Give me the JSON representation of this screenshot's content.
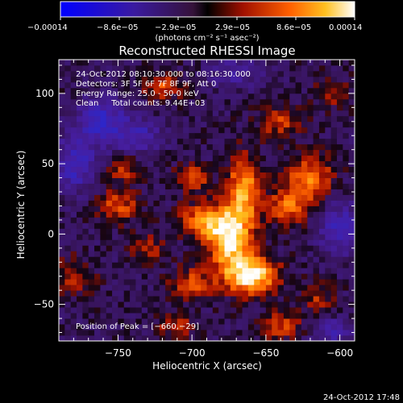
{
  "chart_data": {
    "type": "heatmap",
    "title": "Reconstructed RHESSI Image",
    "xlabel": "Heliocentric X (arcsec)",
    "ylabel": "Heliocentric Y (arcsec)",
    "xlim": [
      -790,
      -590
    ],
    "ylim": [
      -76,
      124
    ],
    "x_ticks": [
      -750,
      -700,
      -650,
      -600
    ],
    "x_tick_labels": [
      "−750",
      "−700",
      "−650",
      "−600"
    ],
    "y_ticks": [
      100,
      50,
      0,
      -50
    ],
    "y_tick_labels": [
      "100",
      "50",
      "0",
      "−50"
    ],
    "colorbar": {
      "range": [
        -0.00014,
        0.00014
      ],
      "tick_labels": [
        "−0.00014",
        "−8.6e−05",
        "−2.9e−05",
        "2.9e−05",
        "8.6e−05",
        "0.00014"
      ],
      "unit_text": "(photons cm⁻² s⁻¹ asec⁻²)"
    },
    "annotations": [
      "24-Oct-2012 08:10:30.000 to 08:16:30.000",
      "Detectors: 3F 5F 6F 7F 8F 9F, Att 0",
      "Energy Range: 25.0 - 50.0 keV",
      "Clean     Total counts: 9.44E+03"
    ],
    "peak_text": "Position of Peak = [−660,−29]",
    "peak": {
      "x": -660,
      "y": -29
    },
    "blobs": [
      {
        "x": -660,
        "y": -29,
        "amp": 1.0,
        "sx": 12,
        "sy": 9
      },
      {
        "x": -675,
        "y": -5,
        "amp": 0.85,
        "sx": 10,
        "sy": 14
      },
      {
        "x": -665,
        "y": 30,
        "amp": 0.72,
        "sx": 8,
        "sy": 18
      },
      {
        "x": -690,
        "y": 10,
        "amp": 0.6,
        "sx": 12,
        "sy": 9
      },
      {
        "x": -700,
        "y": 40,
        "amp": 0.5,
        "sx": 8,
        "sy": 6
      },
      {
        "x": -620,
        "y": 40,
        "amp": 0.55,
        "sx": 11,
        "sy": 12
      },
      {
        "x": -635,
        "y": 20,
        "amp": 0.5,
        "sx": 9,
        "sy": 10
      },
      {
        "x": -640,
        "y": 80,
        "amp": 0.4,
        "sx": 10,
        "sy": 8
      },
      {
        "x": -750,
        "y": 20,
        "amp": 0.45,
        "sx": 10,
        "sy": 8
      },
      {
        "x": -745,
        "y": 45,
        "amp": 0.35,
        "sx": 8,
        "sy": 6
      },
      {
        "x": -720,
        "y": 105,
        "amp": 0.42,
        "sx": 9,
        "sy": 7
      },
      {
        "x": -700,
        "y": -35,
        "amp": 0.42,
        "sx": 10,
        "sy": 8
      },
      {
        "x": -710,
        "y": -65,
        "amp": 0.3,
        "sx": 10,
        "sy": 6
      },
      {
        "x": -640,
        "y": -65,
        "amp": 0.38,
        "sx": 10,
        "sy": 7
      },
      {
        "x": -615,
        "y": -45,
        "amp": 0.3,
        "sx": 8,
        "sy": 8
      },
      {
        "x": -780,
        "y": -30,
        "amp": 0.28,
        "sx": 10,
        "sy": 10
      },
      {
        "x": -730,
        "y": -10,
        "amp": 0.3,
        "sx": 8,
        "sy": 8
      },
      {
        "x": -605,
        "y": 100,
        "amp": 0.25,
        "sx": 9,
        "sy": 8
      },
      {
        "x": -760,
        "y": 80,
        "amp": -0.55,
        "sx": 12,
        "sy": 12
      },
      {
        "x": -780,
        "y": 50,
        "amp": -0.5,
        "sx": 10,
        "sy": 14
      },
      {
        "x": -735,
        "y": 70,
        "amp": -0.4,
        "sx": 10,
        "sy": 8
      },
      {
        "x": -600,
        "y": 5,
        "amp": -0.45,
        "sx": 10,
        "sy": 14
      },
      {
        "x": -605,
        "y": -70,
        "amp": -0.35,
        "sx": 10,
        "sy": 8
      },
      {
        "x": -670,
        "y": 115,
        "amp": -0.3,
        "sx": 12,
        "sy": 8
      }
    ]
  },
  "footer": {
    "timestamp": "24-Oct-2012 17:48"
  }
}
